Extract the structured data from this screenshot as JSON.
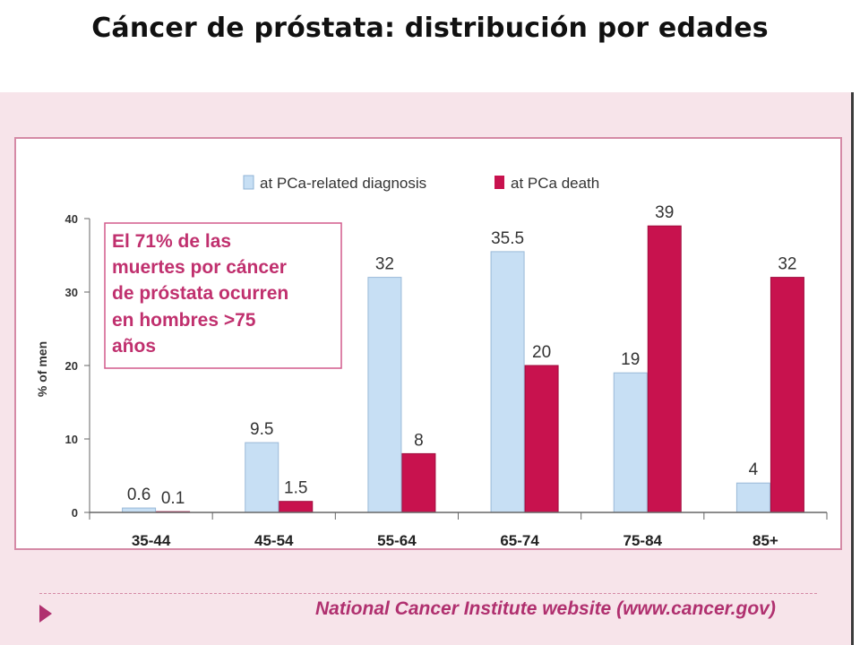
{
  "slide": {
    "title": "Cáncer de próstata: distribución por edades",
    "footer": "National Cancer Institute website (www.cancer.gov)"
  },
  "colors": {
    "diagnosis": "#c7dff4",
    "death": "#c8124e",
    "callout_border": "#d25a8c",
    "callout_text": "#c0306e",
    "footer_text": "#b0306f"
  },
  "chart_data": {
    "type": "bar",
    "title": "",
    "xlabel": "",
    "ylabel": "% of men",
    "ylim": [
      0,
      40
    ],
    "yticks": [
      "0",
      "10",
      "20",
      "30",
      "40"
    ],
    "categories": [
      "35-44",
      "45-54",
      "55-64",
      "65-74",
      "75-84",
      "85+"
    ],
    "series": [
      {
        "name": "at PCa-related diagnosis",
        "values": [
          0.6,
          9.5,
          32,
          35.5,
          19,
          4
        ],
        "labels": [
          "0.6",
          "9.5",
          "32",
          "35.5",
          "19",
          "4"
        ]
      },
      {
        "name": "at PCa death",
        "values": [
          0.1,
          1.5,
          8,
          20,
          39,
          32
        ],
        "labels": [
          "0.1",
          "1.5",
          "8",
          "20",
          "39",
          "32"
        ]
      }
    ],
    "legend_position": "top",
    "grid": false,
    "annotation": [
      "El 71% de las",
      "muertes por cáncer",
      "de próstata ocurren",
      "en hombres >75",
      "años"
    ]
  }
}
